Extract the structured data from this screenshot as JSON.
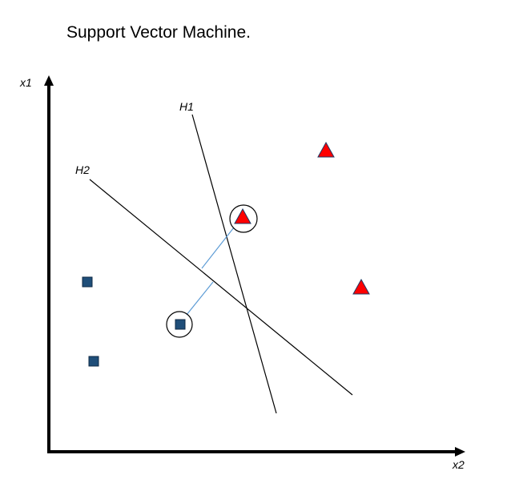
{
  "title": "Support Vector Machine.",
  "axes": {
    "y_label": "x1",
    "x_label": "x2"
  },
  "hyperplanes": [
    {
      "label": "H1"
    },
    {
      "label": "H2"
    }
  ],
  "colors": {
    "triangle_fill": "#ff0000",
    "triangle_stroke": "#1f3864",
    "square_fill": "#1f4e79",
    "square_stroke": "#0f2a45",
    "margin_line": "#5b9bd5",
    "axis": "#000000",
    "hyperplane": "#000000"
  },
  "classes": [
    {
      "name": "triangle",
      "marker": "red-triangle",
      "count": 3,
      "support_vectors": 1
    },
    {
      "name": "square",
      "marker": "blue-square",
      "count": 3,
      "support_vectors": 1
    }
  ]
}
